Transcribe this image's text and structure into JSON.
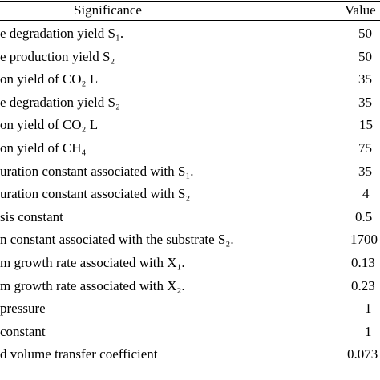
{
  "table": {
    "headers": {
      "significance": "Significance",
      "value": "Value"
    },
    "rows": [
      {
        "significance": "e degradation yield S₁.",
        "value": "50"
      },
      {
        "significance": "e production yield S₂",
        "value": "50"
      },
      {
        "significance": "on yield of CO₂ L",
        "value": "35"
      },
      {
        "significance": "e degradation yield S₂",
        "value": "35"
      },
      {
        "significance": "on yield of CO₂ L",
        "value": "15"
      },
      {
        "significance": "on yield of CH₄",
        "value": "75"
      },
      {
        "significance": "uration constant associated with  S₁.",
        "value": "35"
      },
      {
        "significance": "uration constant associated with S₂",
        "value": "4"
      },
      {
        "significance": "sis constant",
        "value": "0.5"
      },
      {
        "significance": "n constant associated with the substrate S₂.",
        "value": "1700"
      },
      {
        "significance": "m growth rate associated with X₁.",
        "value": "0.13"
      },
      {
        "significance": "m growth rate associated with  X₂.",
        "value": "0.23"
      },
      {
        "significance": " pressure",
        "value": "1"
      },
      {
        "significance": "constant",
        "value": "1"
      },
      {
        "significance": "d volume transfer coefficient",
        "value": "0.073"
      }
    ]
  }
}
